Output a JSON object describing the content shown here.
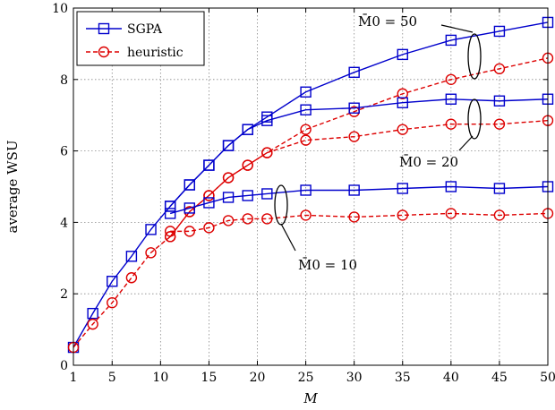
{
  "chart_data": {
    "type": "line",
    "xlabel": "M",
    "ylabel": "average WSU",
    "xlim": [
      1,
      50
    ],
    "ylim": [
      0,
      10
    ],
    "x_ticks": [
      1,
      5,
      10,
      15,
      20,
      25,
      30,
      35,
      40,
      45,
      50
    ],
    "y_ticks": [
      0,
      2,
      4,
      6,
      8,
      10
    ],
    "grid": true,
    "legend_position": "top-left",
    "legend": [
      {
        "label": "SGPA",
        "color": "#0000cc",
        "marker": "square",
        "dash": "solid"
      },
      {
        "label": "heuristic",
        "color": "#dd0000",
        "marker": "circle",
        "dash": "dashed"
      }
    ],
    "annotations": [
      "M̄0 = 50",
      "M̄0 = 20",
      "M̄0 = 10"
    ],
    "series": [
      {
        "name": "SGPA",
        "group": "M̄0 = 50",
        "x": [
          1,
          3,
          5,
          7,
          9,
          11,
          13,
          15,
          17,
          19,
          21,
          25,
          30,
          35,
          40,
          45,
          50
        ],
        "y": [
          0.5,
          1.45,
          2.35,
          3.05,
          3.8,
          4.45,
          5.05,
          5.6,
          6.15,
          6.6,
          6.95,
          7.65,
          8.2,
          8.7,
          9.1,
          9.35,
          9.6
        ]
      },
      {
        "name": "heuristic",
        "group": "M̄0 = 50",
        "x": [
          1,
          3,
          5,
          7,
          9,
          11,
          13,
          15,
          17,
          19,
          21,
          25,
          30,
          35,
          40,
          45,
          50
        ],
        "y": [
          0.5,
          1.15,
          1.75,
          2.45,
          3.15,
          3.6,
          4.3,
          4.75,
          5.25,
          5.6,
          5.95,
          6.6,
          7.1,
          7.6,
          8.0,
          8.3,
          8.6
        ]
      },
      {
        "name": "SGPA",
        "group": "M̄0 = 20",
        "x": [
          11,
          13,
          15,
          17,
          19,
          21,
          25,
          30,
          35,
          40,
          45,
          50
        ],
        "y": [
          4.45,
          5.05,
          5.6,
          6.15,
          6.6,
          6.85,
          7.15,
          7.2,
          7.35,
          7.45,
          7.4,
          7.45
        ]
      },
      {
        "name": "heuristic",
        "group": "M̄0 = 20",
        "x": [
          11,
          13,
          15,
          17,
          19,
          21,
          25,
          30,
          35,
          40,
          45,
          50
        ],
        "y": [
          3.6,
          4.3,
          4.75,
          5.25,
          5.6,
          5.95,
          6.3,
          6.4,
          6.6,
          6.75,
          6.75,
          6.85
        ]
      },
      {
        "name": "SGPA",
        "group": "M̄0 = 10",
        "x": [
          11,
          13,
          15,
          17,
          19,
          21,
          25,
          30,
          35,
          40,
          45,
          50
        ],
        "y": [
          4.25,
          4.4,
          4.55,
          4.7,
          4.75,
          4.8,
          4.9,
          4.9,
          4.95,
          5.0,
          4.95,
          5.0
        ]
      },
      {
        "name": "heuristic",
        "group": "M̄0 = 10",
        "x": [
          11,
          13,
          15,
          17,
          19,
          21,
          25,
          30,
          35,
          40,
          45,
          50
        ],
        "y": [
          3.75,
          3.75,
          3.85,
          4.05,
          4.1,
          4.1,
          4.2,
          4.15,
          4.2,
          4.25,
          4.2,
          4.25
        ]
      }
    ]
  }
}
